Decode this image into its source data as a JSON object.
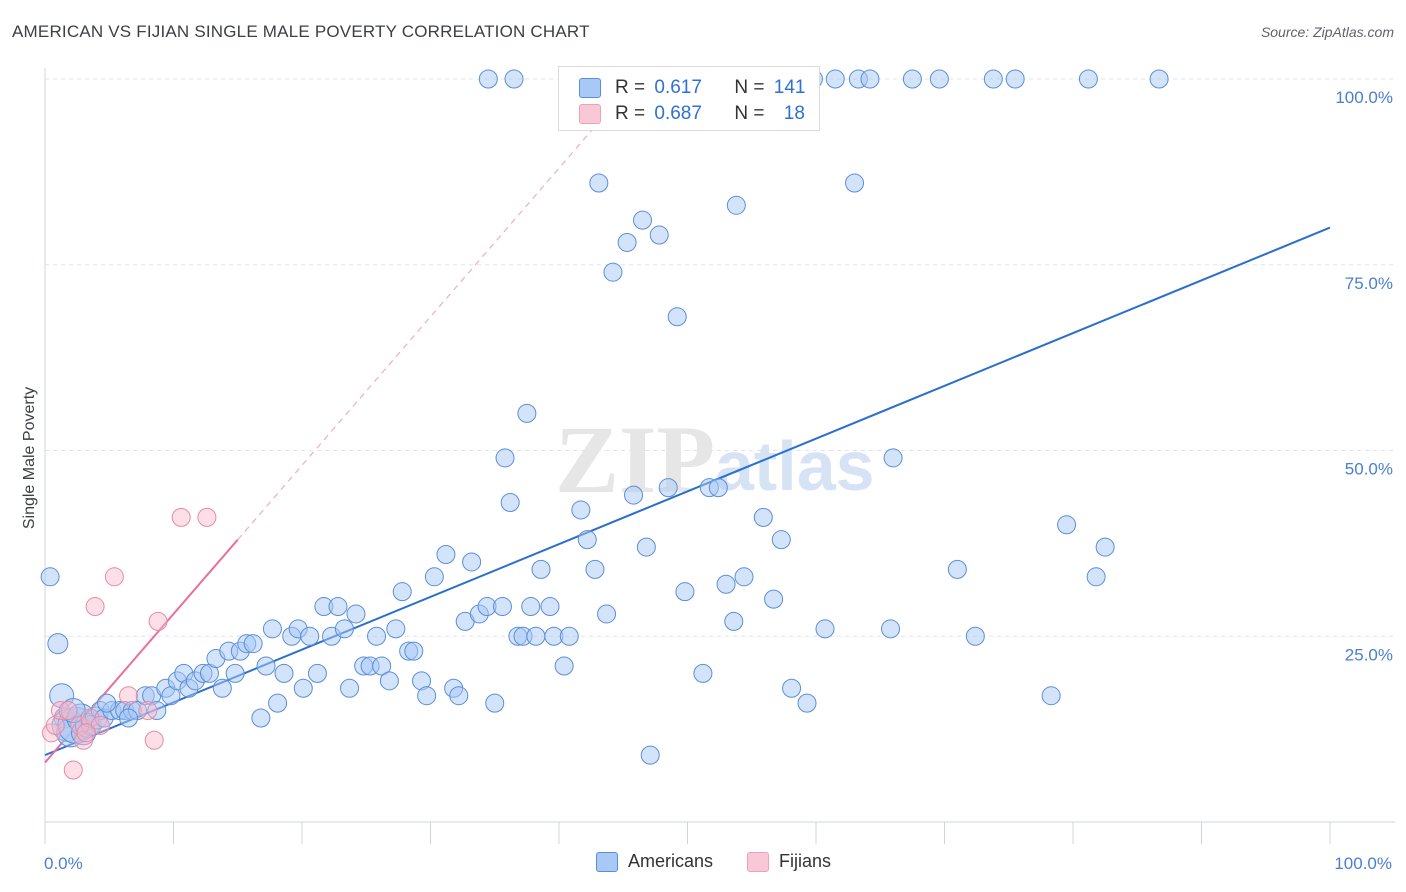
{
  "title": "AMERICAN VS FIJIAN SINGLE MALE POVERTY CORRELATION CHART",
  "source": "Source: ZipAtlas.com",
  "colors": {
    "americans_fill": "#a8c8f5",
    "americans_stroke": "#5a8fd8",
    "americans_line": "#2a6fd0",
    "fijians_fill": "#f8b8ca",
    "fijians_stroke": "#e88aa6",
    "fijians_line": "#e8709a",
    "grid": "#dfe3ea"
  },
  "legend": {
    "rows": [
      {
        "r_label": "R =",
        "r_value": "0.617",
        "n_label": "N =",
        "n_value": "141"
      },
      {
        "r_label": "R =",
        "r_value": "0.687",
        "n_label": "N =",
        "n_value": "18"
      }
    ]
  },
  "bottom_legend": [
    "Americans",
    "Fijians"
  ],
  "chart_data": {
    "type": "scatter",
    "title": "AMERICAN VS FIJIAN SINGLE MALE POVERTY CORRELATION CHART",
    "xlabel": "",
    "ylabel": "Single Male Poverty",
    "xlim": [
      0,
      100
    ],
    "ylim": [
      0,
      100
    ],
    "x_tick_labels": [
      "0.0%",
      "100.0%"
    ],
    "y_tick_labels": [
      "25.0%",
      "50.0%",
      "75.0%",
      "100.0%"
    ],
    "y_ticks": [
      25,
      50,
      75,
      100
    ],
    "grid": true,
    "legend_position": "top-center",
    "watermark": "ZIPatlas",
    "series": [
      {
        "name": "Americans",
        "r": 0.617,
        "n": 141,
        "trend": {
          "x": [
            0,
            100
          ],
          "y": [
            9,
            80
          ]
        },
        "points": [
          [
            0.4,
            33,
            9
          ],
          [
            1,
            24,
            10
          ],
          [
            1.3,
            17,
            12
          ],
          [
            1.5,
            14,
            10
          ],
          [
            1.8,
            13,
            16
          ],
          [
            2,
            12,
            14
          ],
          [
            2.4,
            13,
            18
          ],
          [
            2.8,
            14,
            14
          ],
          [
            3,
            12,
            12
          ],
          [
            3.3,
            13,
            12
          ],
          [
            3.6,
            13,
            10
          ],
          [
            4,
            14,
            11
          ],
          [
            4.3,
            15,
            9
          ],
          [
            4.6,
            14,
            9
          ],
          [
            5.2,
            15,
            9
          ],
          [
            5.8,
            15,
            9
          ],
          [
            6.2,
            15,
            9
          ],
          [
            6.8,
            15,
            9
          ],
          [
            7.2,
            15,
            9
          ],
          [
            7.8,
            17,
            9
          ],
          [
            8.3,
            17,
            9
          ],
          [
            8.7,
            15,
            9
          ],
          [
            9.4,
            18,
            9
          ],
          [
            9.8,
            17,
            9
          ],
          [
            10.3,
            19,
            9
          ],
          [
            10.8,
            20,
            9
          ],
          [
            11.2,
            18,
            9
          ],
          [
            11.7,
            19,
            9
          ],
          [
            12.3,
            20,
            9
          ],
          [
            12.8,
            20,
            9
          ],
          [
            13.3,
            22,
            9
          ],
          [
            13.8,
            18,
            9
          ],
          [
            14.3,
            23,
            9
          ],
          [
            14.8,
            20,
            9
          ],
          [
            15.2,
            23,
            9
          ],
          [
            15.7,
            24,
            9
          ],
          [
            16.2,
            24,
            9
          ],
          [
            16.8,
            14,
            9
          ],
          [
            17.2,
            21,
            9
          ],
          [
            17.7,
            26,
            9
          ],
          [
            18.1,
            16,
            9
          ],
          [
            18.6,
            20,
            9
          ],
          [
            19.2,
            25,
            9
          ],
          [
            19.7,
            26,
            9
          ],
          [
            20.1,
            18,
            9
          ],
          [
            20.6,
            25,
            9
          ],
          [
            21.2,
            20,
            9
          ],
          [
            21.7,
            29,
            9
          ],
          [
            22.3,
            25,
            9
          ],
          [
            22.8,
            29,
            9
          ],
          [
            23.3,
            26,
            9
          ],
          [
            23.7,
            18,
            9
          ],
          [
            24.2,
            28,
            9
          ],
          [
            24.8,
            21,
            9
          ],
          [
            25.3,
            21,
            9
          ],
          [
            25.8,
            25,
            9
          ],
          [
            26.2,
            21,
            9
          ],
          [
            26.8,
            19,
            9
          ],
          [
            27.3,
            26,
            9
          ],
          [
            27.8,
            31,
            9
          ],
          [
            28.3,
            23,
            9
          ],
          [
            28.7,
            23,
            9
          ],
          [
            29.3,
            19,
            9
          ],
          [
            29.7,
            17,
            9
          ],
          [
            30.3,
            33,
            9
          ],
          [
            31.2,
            36,
            9
          ],
          [
            31.8,
            18,
            9
          ],
          [
            32.2,
            17,
            9
          ],
          [
            32.7,
            27,
            9
          ],
          [
            33.2,
            35,
            9
          ],
          [
            33.8,
            28,
            9
          ],
          [
            34.4,
            29,
            9
          ],
          [
            35,
            16,
            9
          ],
          [
            35.6,
            29,
            9
          ],
          [
            35.8,
            49,
            9
          ],
          [
            36.2,
            43,
            9
          ],
          [
            36.8,
            25,
            9
          ],
          [
            37.2,
            25,
            9
          ],
          [
            37.8,
            29,
            9
          ],
          [
            38.2,
            25,
            9
          ],
          [
            38.6,
            34,
            9
          ],
          [
            39.3,
            29,
            9
          ],
          [
            39.6,
            25,
            9
          ],
          [
            40.4,
            21,
            9
          ],
          [
            40.8,
            25,
            9
          ],
          [
            41.7,
            42,
            9
          ],
          [
            42.2,
            38,
            9
          ],
          [
            42.8,
            34,
            9
          ],
          [
            43.1,
            86,
            9
          ],
          [
            43.7,
            28,
            9
          ],
          [
            44.2,
            74,
            9
          ],
          [
            45.3,
            78,
            9
          ],
          [
            45.8,
            44,
            9
          ],
          [
            46.5,
            81,
            9
          ],
          [
            46.8,
            37,
            9
          ],
          [
            47.1,
            9,
            9
          ],
          [
            47.8,
            79,
            9
          ],
          [
            48.5,
            45,
            9
          ],
          [
            49.2,
            68,
            9
          ],
          [
            49.8,
            31,
            9
          ],
          [
            51.2,
            20,
            9
          ],
          [
            51.7,
            45,
            9
          ],
          [
            52.4,
            45,
            9
          ],
          [
            53,
            32,
            9
          ],
          [
            53.6,
            27,
            9
          ],
          [
            53.8,
            83,
            9
          ],
          [
            54.4,
            33,
            9
          ],
          [
            55.9,
            41,
            9
          ],
          [
            56.7,
            30,
            9
          ],
          [
            57.3,
            38,
            9
          ],
          [
            58.1,
            18,
            9
          ],
          [
            59.3,
            16,
            9
          ],
          [
            59.8,
            100,
            9
          ],
          [
            60.7,
            26,
            9
          ],
          [
            63,
            86,
            9
          ],
          [
            65.8,
            26,
            9
          ],
          [
            67.5,
            100,
            9
          ],
          [
            69.6,
            100,
            9
          ],
          [
            71,
            34,
            9
          ],
          [
            72.4,
            25,
            9
          ],
          [
            73.8,
            100,
            9
          ],
          [
            75.5,
            100,
            9
          ],
          [
            78.3,
            17,
            9
          ],
          [
            79.5,
            40,
            9
          ],
          [
            81.2,
            100,
            9
          ],
          [
            81.8,
            33,
            9
          ],
          [
            82.5,
            37,
            9
          ],
          [
            86.7,
            100,
            9
          ],
          [
            34.5,
            100,
            9
          ],
          [
            36.5,
            100,
            9
          ],
          [
            47.6,
            100,
            9
          ],
          [
            53.2,
            100,
            9
          ],
          [
            55.5,
            100,
            9
          ],
          [
            61.5,
            100,
            9
          ],
          [
            63.3,
            100,
            9
          ],
          [
            64.2,
            100,
            9
          ],
          [
            66,
            49,
            9
          ],
          [
            37.5,
            55,
            9
          ],
          [
            4.8,
            16,
            9
          ],
          [
            6.5,
            14,
            9
          ],
          [
            2.2,
            15,
            12
          ]
        ]
      },
      {
        "name": "Fijians",
        "r": 0.687,
        "n": 18,
        "trend": {
          "x": [
            0,
            15
          ],
          "y": [
            8,
            38
          ]
        },
        "points": [
          [
            0.5,
            12,
            9
          ],
          [
            0.8,
            13,
            9
          ],
          [
            1.2,
            15,
            9
          ],
          [
            1.8,
            15,
            9
          ],
          [
            2.2,
            7,
            9
          ],
          [
            2.7,
            13,
            9
          ],
          [
            3,
            11,
            9
          ],
          [
            3.5,
            14,
            9
          ],
          [
            3.9,
            29,
            9
          ],
          [
            4.3,
            13,
            9
          ],
          [
            5.4,
            33,
            9
          ],
          [
            6.5,
            17,
            9
          ],
          [
            8,
            15,
            9
          ],
          [
            8.5,
            11,
            9
          ],
          [
            8.8,
            27,
            9
          ],
          [
            10.6,
            41,
            9
          ],
          [
            12.6,
            41,
            9
          ],
          [
            3.2,
            12,
            9
          ]
        ]
      }
    ]
  }
}
